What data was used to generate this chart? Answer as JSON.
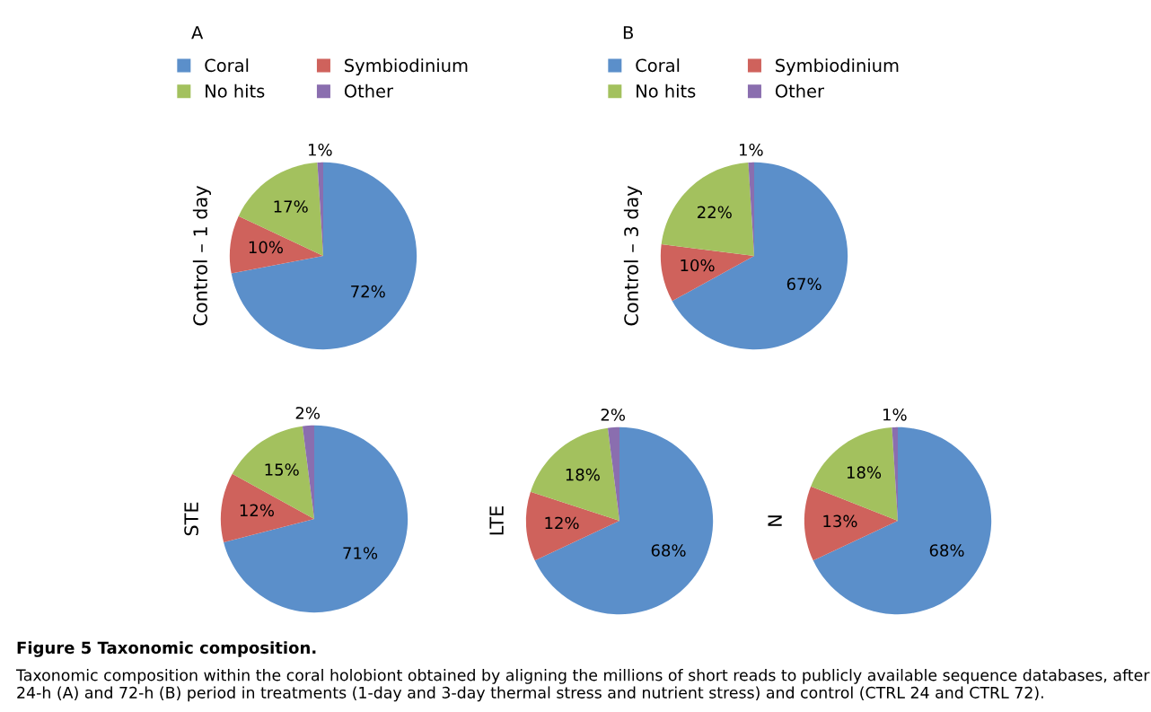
{
  "chart_data": [
    {
      "type": "pie",
      "title": "A",
      "ylabel": "Control – 1 day",
      "legend": "top",
      "categories": [
        "Coral",
        "Symbiodinium",
        "No hits",
        "Other"
      ],
      "values": [
        72,
        10,
        17,
        1
      ],
      "value_labels": [
        "72%",
        "10%",
        "17%",
        "1%"
      ],
      "colors": [
        "#5b8fca",
        "#cf625c",
        "#a3c15e",
        "#8a6eaf"
      ]
    },
    {
      "type": "pie",
      "title": "B",
      "ylabel": "Control – 3 day",
      "legend": "top",
      "categories": [
        "Coral",
        "Symbiodinium",
        "No hits",
        "Other"
      ],
      "values": [
        67,
        10,
        22,
        1
      ],
      "value_labels": [
        "67%",
        "10%",
        "22%",
        "1%"
      ],
      "colors": [
        "#5b8fca",
        "#cf625c",
        "#a3c15e",
        "#8a6eaf"
      ]
    },
    {
      "type": "pie",
      "ylabel": "STE",
      "categories": [
        null,
        null,
        null,
        null
      ],
      "values": [
        71,
        12,
        15,
        2
      ],
      "value_labels": [
        "71%",
        "12%",
        "15%",
        "2%"
      ],
      "colors": [
        "#5b8fca",
        "#cf625c",
        "#a3c15e",
        "#8a6eaf"
      ]
    },
    {
      "type": "pie",
      "ylabel": "LTE",
      "categories": [
        null,
        null,
        null,
        null
      ],
      "values": [
        68,
        12,
        18,
        2
      ],
      "value_labels": [
        "68%",
        "12%",
        "18%",
        "2%"
      ],
      "colors": [
        "#5b8fca",
        "#cf625c",
        "#a3c15e",
        "#8a6eaf"
      ]
    },
    {
      "type": "pie",
      "ylabel": "N",
      "categories": [
        null,
        null,
        null,
        null
      ],
      "values": [
        68,
        13,
        18,
        1
      ],
      "value_labels": [
        "68%",
        "13%",
        "18%",
        "1%"
      ],
      "colors": [
        "#5b8fca",
        "#cf625c",
        "#a3c15e",
        "#8a6eaf"
      ],
      "annotations": [
        "Figure 5 Taxonomic composition.",
        "Taxonomic composition within the coral holobiont obtained by aligning the millions of short reads to publicly available sequence databases, after 24-h (A) and 72-h (B) period in treatments (1-day and 3-day thermal stress and nutrient stress) and control (CTRL 24 and CTRL 72)."
      ]
    }
  ]
}
